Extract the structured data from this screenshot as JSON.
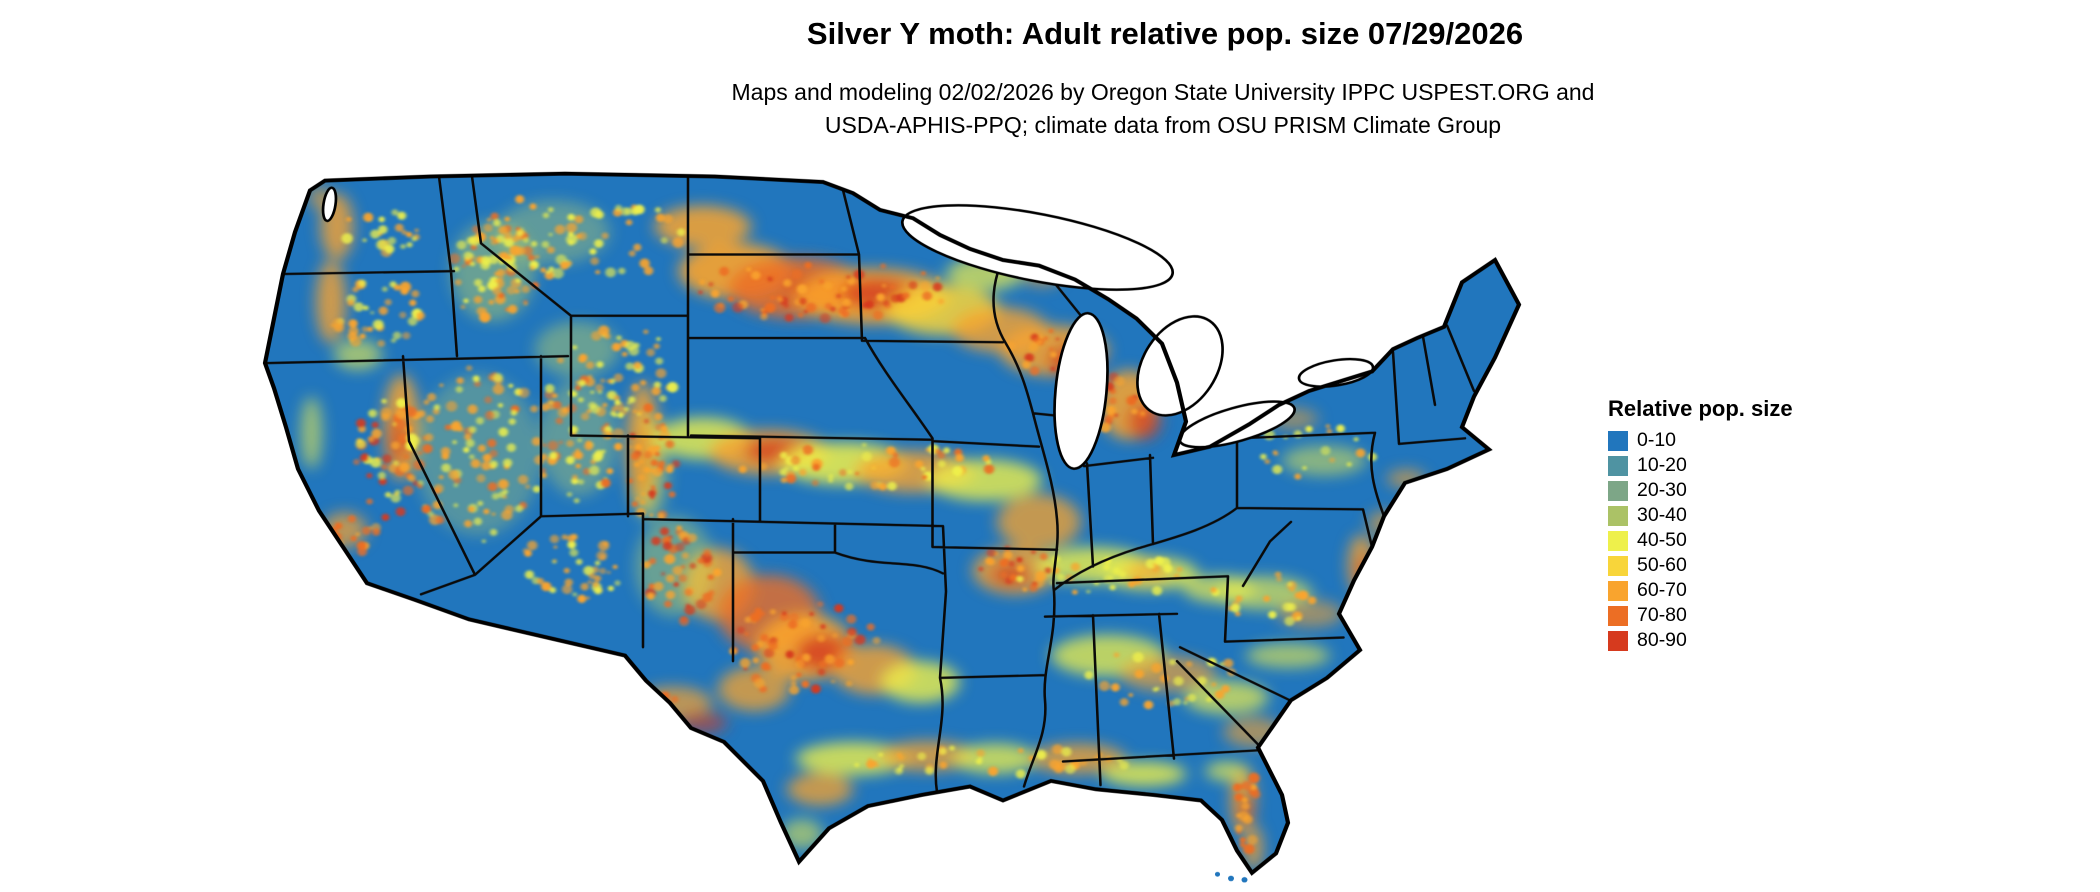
{
  "title": "Silver Y moth: Adult relative pop. size 07/29/2026",
  "subtitle_line1": "Maps and modeling 02/02/2026 by Oregon State University IPPC USPEST.ORG and",
  "subtitle_line2": "USDA-APHIS-PPQ; climate data from OSU PRISM Climate Group",
  "map": {
    "region": "Continental United States",
    "type": "raster heatmap with state borders",
    "water_color": "#ffffff",
    "border_color": "#000000"
  },
  "legend": {
    "title": "Relative pop. size",
    "items": [
      {
        "label": "0-10",
        "color": "#2176bd"
      },
      {
        "label": "10-20",
        "color": "#4f93a2"
      },
      {
        "label": "20-30",
        "color": "#7da687"
      },
      {
        "label": "30-40",
        "color": "#abc266"
      },
      {
        "label": "40-50",
        "color": "#eef04b"
      },
      {
        "label": "50-60",
        "color": "#f8d53a"
      },
      {
        "label": "60-70",
        "color": "#f9a42e"
      },
      {
        "label": "70-80",
        "color": "#ec6e24"
      },
      {
        "label": "80-90",
        "color": "#d63a1e"
      }
    ]
  }
}
